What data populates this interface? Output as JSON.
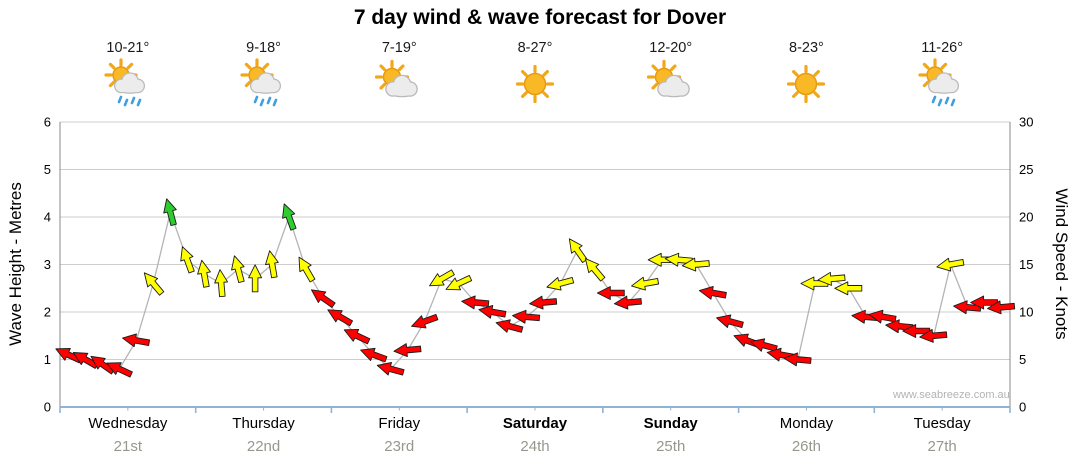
{
  "title": "7 day wind & wave forecast for Dover",
  "watermark": "www.seabreeze.com.au",
  "chart_data": {
    "type": "scatter",
    "subtype": "wind-arrow-timeseries",
    "title": "7 day wind & wave forecast for Dover",
    "left_axis": {
      "label": "Wave Height - Metres",
      "min": 0,
      "max": 6,
      "ticks": [
        0,
        1,
        2,
        3,
        4,
        5,
        6
      ]
    },
    "right_axis": {
      "label": "Wind Speed - Knots",
      "min": 0,
      "max": 30,
      "ticks": [
        0,
        5,
        10,
        15,
        20,
        25,
        30
      ]
    },
    "grid": true,
    "wind_colors": {
      "light": "#ff0000",
      "moderate": "#ffff00",
      "fresh": "#2ecc2e"
    },
    "wind_color_thresholds": {
      "yellow_min": 12.5,
      "green_min": 19
    },
    "days": [
      {
        "name": "Wednesday",
        "date": "21st",
        "temps": "10-21°",
        "icon": "sun-cloud-rain",
        "weekend": false,
        "wind_knots": [
          5.5,
          5,
          4.5,
          4,
          7,
          13,
          20.5,
          15.5
        ],
        "wind_dir_deg": [
          205,
          210,
          215,
          205,
          190,
          230,
          255,
          250
        ]
      },
      {
        "name": "Thursday",
        "date": "22nd",
        "temps": "9-18°",
        "icon": "sun-cloud-rain",
        "weekend": false,
        "wind_knots": [
          14,
          13,
          14.5,
          13.5,
          15,
          20,
          14.5,
          11.5
        ],
        "wind_dir_deg": [
          260,
          265,
          255,
          270,
          260,
          250,
          240,
          215
        ]
      },
      {
        "name": "Friday",
        "date": "23rd",
        "temps": "7-19°",
        "icon": "sun-cloud",
        "weekend": false,
        "wind_knots": [
          9.5,
          7.5,
          5.5,
          4,
          6,
          9,
          13.5,
          13
        ],
        "wind_dir_deg": [
          210,
          205,
          200,
          195,
          175,
          160,
          150,
          155
        ]
      },
      {
        "name": "Saturday",
        "date": "24th",
        "temps": "8-27°",
        "icon": "sun",
        "weekend": true,
        "wind_knots": [
          11,
          10,
          8.5,
          9.5,
          11,
          13,
          16.5,
          14.5
        ],
        "wind_dir_deg": [
          185,
          190,
          195,
          185,
          175,
          165,
          235,
          230
        ]
      },
      {
        "name": "Sunday",
        "date": "25th",
        "temps": "12-20°",
        "icon": "sun-cloud",
        "weekend": true,
        "wind_knots": [
          12,
          11,
          13,
          15.5,
          15.5,
          15,
          12,
          9
        ],
        "wind_dir_deg": [
          180,
          175,
          170,
          180,
          185,
          175,
          190,
          195
        ]
      },
      {
        "name": "Monday",
        "date": "26th",
        "temps": "8-23°",
        "icon": "sun",
        "weekend": false,
        "wind_knots": [
          7,
          6.5,
          5.5,
          5,
          13,
          13.5,
          12.5,
          9.5
        ],
        "wind_dir_deg": [
          200,
          195,
          190,
          185,
          180,
          175,
          180,
          185
        ]
      },
      {
        "name": "Tuesday",
        "date": "27th",
        "temps": "11-26°",
        "icon": "sun-cloud-rain",
        "weekend": false,
        "wind_knots": [
          9.5,
          8.5,
          8,
          7.5,
          15,
          10.5,
          11,
          10.5
        ],
        "wind_dir_deg": [
          190,
          185,
          180,
          175,
          170,
          185,
          180,
          175
        ]
      }
    ]
  }
}
